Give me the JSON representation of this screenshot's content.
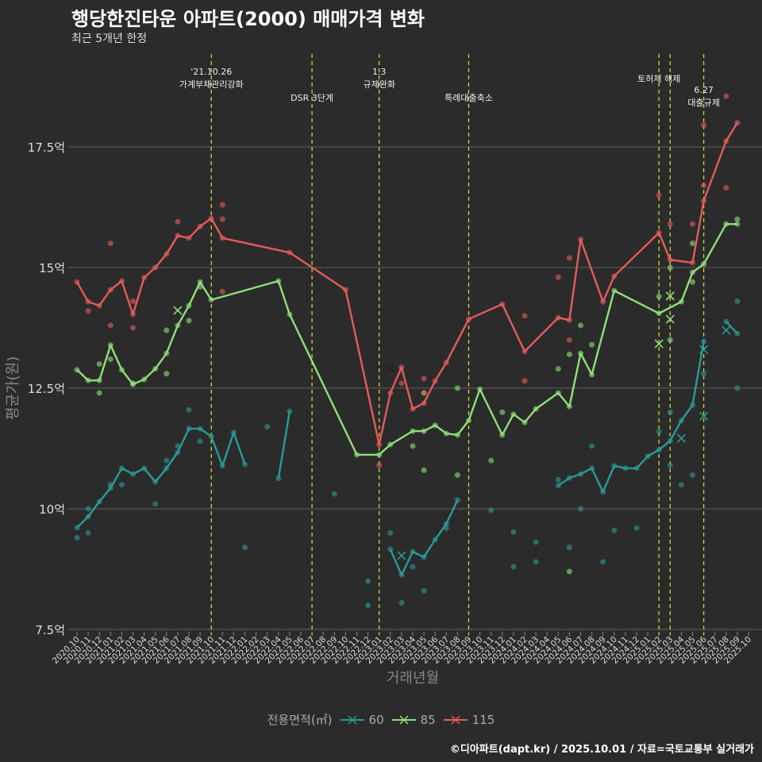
{
  "title": "행당한진타운 아파트(2000) 매매가격 변화",
  "subtitle": "최근 5개년 한정",
  "caption": "©디아파트(dapt.kr) / 2025.10.01 / 자료=국토교통부 실거래가",
  "colors": {
    "60": "#2a9a96",
    "85": "#8fe07a",
    "115": "#e45b5b",
    "vline": "#c8d43a",
    "grid": "#555555"
  },
  "chart_data": {
    "type": "line",
    "title": "행당한진타운 아파트(2000) 매매가격 변화",
    "xlabel": "거래년월",
    "ylabel": "평균가(원)",
    "ylim": [
      7.5,
      18.2
    ],
    "yticks": [
      7.5,
      10,
      12.5,
      15,
      17.5
    ],
    "ytick_labels": [
      "7.5억",
      "10억",
      "12.5억",
      "15억",
      "17.5억"
    ],
    "x": [
      "2020.10",
      "2020.11",
      "2020.12",
      "2021.01",
      "2021.02",
      "2021.03",
      "2021.04",
      "2021.05",
      "2021.06",
      "2021.07",
      "2021.08",
      "2021.09",
      "2021.10",
      "2021.11",
      "2021.12",
      "2022.01",
      "2022.02",
      "2022.03",
      "2022.04",
      "2022.05",
      "2022.06",
      "2022.07",
      "2022.08",
      "2022.09",
      "2022.10",
      "2022.11",
      "2022.12",
      "2023.01",
      "2023.02",
      "2023.03",
      "2023.04",
      "2023.05",
      "2023.06",
      "2023.07",
      "2023.08",
      "2023.09",
      "2023.10",
      "2023.11",
      "2023.12",
      "2024.01",
      "2024.02",
      "2024.03",
      "2024.04",
      "2024.05",
      "2024.06",
      "2024.07",
      "2024.08",
      "2024.09",
      "2024.10",
      "2024.11",
      "2024.12",
      "2025.01",
      "2025.02",
      "2025.03",
      "2025.04",
      "2025.05",
      "2025.06",
      "2025.07",
      "2025.08",
      "2025.09",
      "2025.10"
    ],
    "legend_title": "전용면적(㎡)",
    "legend_position": "bottom",
    "series": [
      {
        "name": "60",
        "connect_gaps": false,
        "values": [
          9.61,
          9.84,
          10.15,
          10.43,
          10.84,
          10.72,
          10.84,
          10.56,
          10.84,
          11.17,
          11.66,
          11.66,
          11.5,
          10.89,
          11.58,
          10.92,
          null,
          null,
          10.63,
          12.02,
          null,
          null,
          null,
          10.31,
          null,
          null,
          8.5,
          null,
          9.16,
          8.63,
          9.11,
          9.0,
          9.36,
          9.69,
          10.18,
          null,
          null,
          9.97,
          null,
          9.52,
          null,
          9.31,
          null,
          10.48,
          10.64,
          10.72,
          10.84,
          10.35,
          10.89,
          10.84,
          10.84,
          11.09,
          11.22,
          11.41,
          11.83,
          12.15,
          13.47,
          null,
          13.88,
          13.63,
          null
        ],
        "extra_points": [
          [
            0,
            9.4
          ],
          [
            1,
            9.5
          ],
          [
            1,
            10.0
          ],
          [
            3,
            10.5
          ],
          [
            4,
            10.5
          ],
          [
            7,
            10.1
          ],
          [
            8,
            11.0
          ],
          [
            9,
            11.3
          ],
          [
            10,
            12.05
          ],
          [
            11,
            11.4
          ],
          [
            15,
            9.2
          ],
          [
            17,
            11.7
          ],
          [
            26,
            8.0
          ],
          [
            28,
            9.5
          ],
          [
            29,
            8.05
          ],
          [
            30,
            8.8
          ],
          [
            31,
            8.3
          ],
          [
            33,
            9.6
          ],
          [
            39,
            8.8
          ],
          [
            41,
            8.9
          ],
          [
            43,
            10.6
          ],
          [
            44,
            9.2
          ],
          [
            45,
            10.0
          ],
          [
            46,
            11.3
          ],
          [
            47,
            8.9
          ],
          [
            48,
            9.55
          ],
          [
            50,
            9.6
          ],
          [
            52,
            11.6
          ],
          [
            53,
            12.0
          ],
          [
            53,
            10.9
          ],
          [
            54,
            10.5
          ],
          [
            55,
            10.7
          ],
          [
            56,
            12.8
          ],
          [
            59,
            14.3
          ],
          [
            59,
            12.5
          ]
        ],
        "marked_points": [
          [
            29,
            9.03
          ],
          [
            54,
            11.46
          ],
          [
            56,
            11.92
          ],
          [
            56,
            13.3
          ],
          [
            58,
            13.7
          ]
        ]
      },
      {
        "name": "85",
        "connect_gaps": true,
        "values": [
          12.88,
          12.66,
          12.66,
          13.39,
          12.88,
          12.58,
          12.68,
          12.9,
          13.22,
          13.8,
          14.21,
          14.7,
          14.33,
          null,
          null,
          null,
          null,
          null,
          14.72,
          14.03,
          null,
          null,
          null,
          null,
          null,
          11.12,
          null,
          11.12,
          11.33,
          null,
          11.61,
          11.61,
          11.73,
          11.56,
          11.53,
          11.83,
          12.48,
          null,
          11.53,
          11.96,
          11.79,
          12.07,
          null,
          12.4,
          12.12,
          13.22,
          12.78,
          null,
          14.52,
          null,
          null,
          null,
          14.05,
          null,
          14.29,
          14.9,
          15.07,
          null,
          15.9,
          15.9,
          null
        ],
        "extra_points": [
          [
            2,
            12.4
          ],
          [
            2,
            13.0
          ],
          [
            3,
            13.1
          ],
          [
            5,
            12.6
          ],
          [
            8,
            12.8
          ],
          [
            8,
            13.7
          ],
          [
            10,
            13.9
          ],
          [
            11,
            14.6
          ],
          [
            30,
            11.3
          ],
          [
            31,
            10.8
          ],
          [
            31,
            12.4
          ],
          [
            34,
            12.5
          ],
          [
            34,
            10.7
          ],
          [
            37,
            11.0
          ],
          [
            38,
            12.0
          ],
          [
            43,
            12.9
          ],
          [
            44,
            13.2
          ],
          [
            44,
            8.7
          ],
          [
            45,
            13.8
          ],
          [
            46,
            13.4
          ],
          [
            52,
            14.4
          ],
          [
            53,
            15.0
          ],
          [
            53,
            13.5
          ],
          [
            55,
            15.5
          ],
          [
            55,
            14.7
          ],
          [
            59,
            16.0
          ]
        ],
        "marked_points": [
          [
            9,
            14.11
          ],
          [
            52,
            13.42
          ],
          [
            53,
            14.41
          ],
          [
            53,
            13.93
          ]
        ]
      },
      {
        "name": "115",
        "connect_gaps": true,
        "values": [
          14.7,
          14.29,
          14.21,
          14.54,
          14.72,
          14.03,
          14.79,
          15.0,
          15.28,
          15.66,
          15.61,
          15.85,
          16.02,
          15.61,
          null,
          null,
          null,
          null,
          null,
          15.31,
          null,
          null,
          null,
          null,
          14.54,
          null,
          null,
          11.33,
          12.4,
          12.93,
          12.07,
          12.19,
          12.65,
          13.03,
          null,
          13.93,
          null,
          null,
          14.24,
          null,
          13.26,
          null,
          null,
          13.96,
          13.91,
          15.58,
          null,
          14.29,
          14.82,
          null,
          null,
          null,
          15.72,
          15.16,
          null,
          15.1,
          16.38,
          null,
          17.62,
          18.0,
          null
        ],
        "extra_points": [
          [
            1,
            14.1
          ],
          [
            3,
            15.5
          ],
          [
            3,
            13.8
          ],
          [
            5,
            14.3
          ],
          [
            5,
            13.75
          ],
          [
            9,
            15.95
          ],
          [
            13,
            16.3
          ],
          [
            13,
            16.0
          ],
          [
            13,
            14.5
          ],
          [
            27,
            10.9
          ],
          [
            29,
            12.6
          ],
          [
            31,
            12.7
          ],
          [
            31,
            12.4
          ],
          [
            40,
            14.0
          ],
          [
            40,
            12.65
          ],
          [
            43,
            14.8
          ],
          [
            44,
            15.2
          ],
          [
            44,
            13.5
          ],
          [
            52,
            16.5
          ],
          [
            53,
            15.9
          ],
          [
            55,
            15.9
          ],
          [
            56,
            16.7
          ],
          [
            56,
            17.95
          ],
          [
            58,
            18.55
          ],
          [
            58,
            16.65
          ]
        ],
        "marked_points": [
          [
            28,
            12.91
          ]
        ]
      }
    ],
    "vlines": [
      {
        "x": "2021.10",
        "label_lines": [
          "'21.10.26",
          "가계부채관리강화"
        ]
      },
      {
        "x": "2022.07",
        "label_lines": [
          "DSR 3단계"
        ]
      },
      {
        "x": "2023.01",
        "label_lines": [
          "1.3",
          "규제완화"
        ]
      },
      {
        "x": "2023.09",
        "label_lines": [
          "특례대출축소"
        ]
      },
      {
        "x": "2025.02",
        "label_lines": [
          "토허제 해제"
        ]
      },
      {
        "x": "2025.03",
        "label_lines": []
      },
      {
        "x": "2025.06",
        "label_lines": [
          "6.27",
          "대출규제"
        ]
      }
    ]
  }
}
